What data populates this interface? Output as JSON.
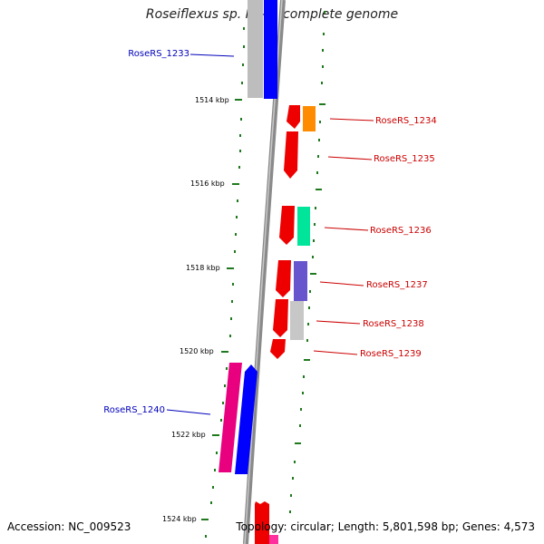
{
  "title": "Roseiflexus sp. RS-1, complete genome",
  "footer": {
    "accession": "Accession: NC_009523",
    "summary": "Topology: circular; Length: 5,801,598 bp; Genes: 4,573"
  },
  "colors": {
    "backbone": "#888888",
    "tick": "#1f7a1f",
    "forward_label": "#0000bb",
    "reverse_label": "#cc0000"
  },
  "ticks": [
    {
      "label": "1514 kbp"
    },
    {
      "label": "1516 kbp"
    },
    {
      "label": "1518 kbp"
    },
    {
      "label": "1520 kbp"
    },
    {
      "label": "1522 kbp"
    },
    {
      "label": "1524 kbp"
    }
  ],
  "gene_labels": [
    {
      "text": "RoseRS_1233",
      "strand": "forward"
    },
    {
      "text": "RoseRS_1234",
      "strand": "reverse"
    },
    {
      "text": "RoseRS_1235",
      "strand": "reverse"
    },
    {
      "text": "RoseRS_1236",
      "strand": "reverse"
    },
    {
      "text": "RoseRS_1237",
      "strand": "reverse"
    },
    {
      "text": "RoseRS_1238",
      "strand": "reverse"
    },
    {
      "text": "RoseRS_1239",
      "strand": "reverse"
    },
    {
      "text": "RoseRS_1240",
      "strand": "forward"
    }
  ]
}
